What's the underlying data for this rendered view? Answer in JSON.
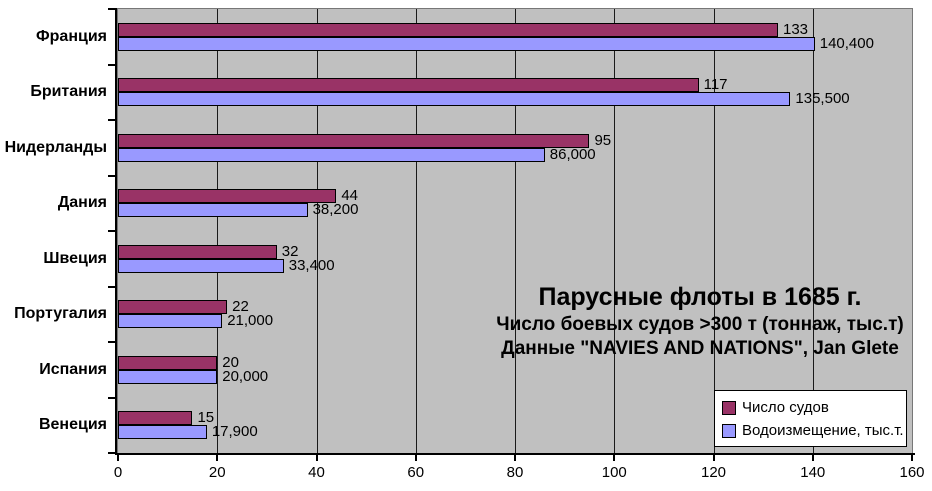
{
  "chart_data": {
    "type": "bar",
    "orientation": "horizontal",
    "title": "Парусные флоты в 1685 г.",
    "subtitle_line1": "Число боевых судов >300 т (тоннаж, тыс.т)",
    "subtitle_line2": "Данные \"NAVIES AND NATIONS\", Jan Glete",
    "categories": [
      "Франция",
      "Британия",
      "Нидерланды",
      "Дания",
      "Швеция",
      "Португалия",
      "Испания",
      "Венеция"
    ],
    "series": [
      {
        "name": "Число судов",
        "color": "#993366",
        "values": [
          133,
          117,
          95,
          44,
          32,
          22,
          20,
          15
        ],
        "value_labels": [
          "133",
          "117",
          "95",
          "44",
          "32",
          "22",
          "20",
          "15"
        ]
      },
      {
        "name": "Водоизмещение, тыс.т.",
        "color": "#9999FF",
        "values": [
          140.4,
          135.5,
          86,
          38.2,
          33.4,
          21,
          20,
          17.9
        ],
        "value_labels": [
          "140,400",
          "135,500",
          "86,000",
          "38,200",
          "33,400",
          "21,000",
          "20,000",
          "17,900"
        ]
      }
    ],
    "x_axis": {
      "min": 0,
      "max": 160,
      "tick_interval": 20,
      "tick_labels": [
        "0",
        "20",
        "40",
        "60",
        "80",
        "100",
        "120",
        "140",
        "160"
      ]
    },
    "legend_position": "inside-bottom-right",
    "grid": true,
    "colors": {
      "plot_background": "#C0C0C0",
      "page_background": "#FFFFFF",
      "bar_border": "#000000",
      "gridline": "#1a1a1a"
    }
  }
}
